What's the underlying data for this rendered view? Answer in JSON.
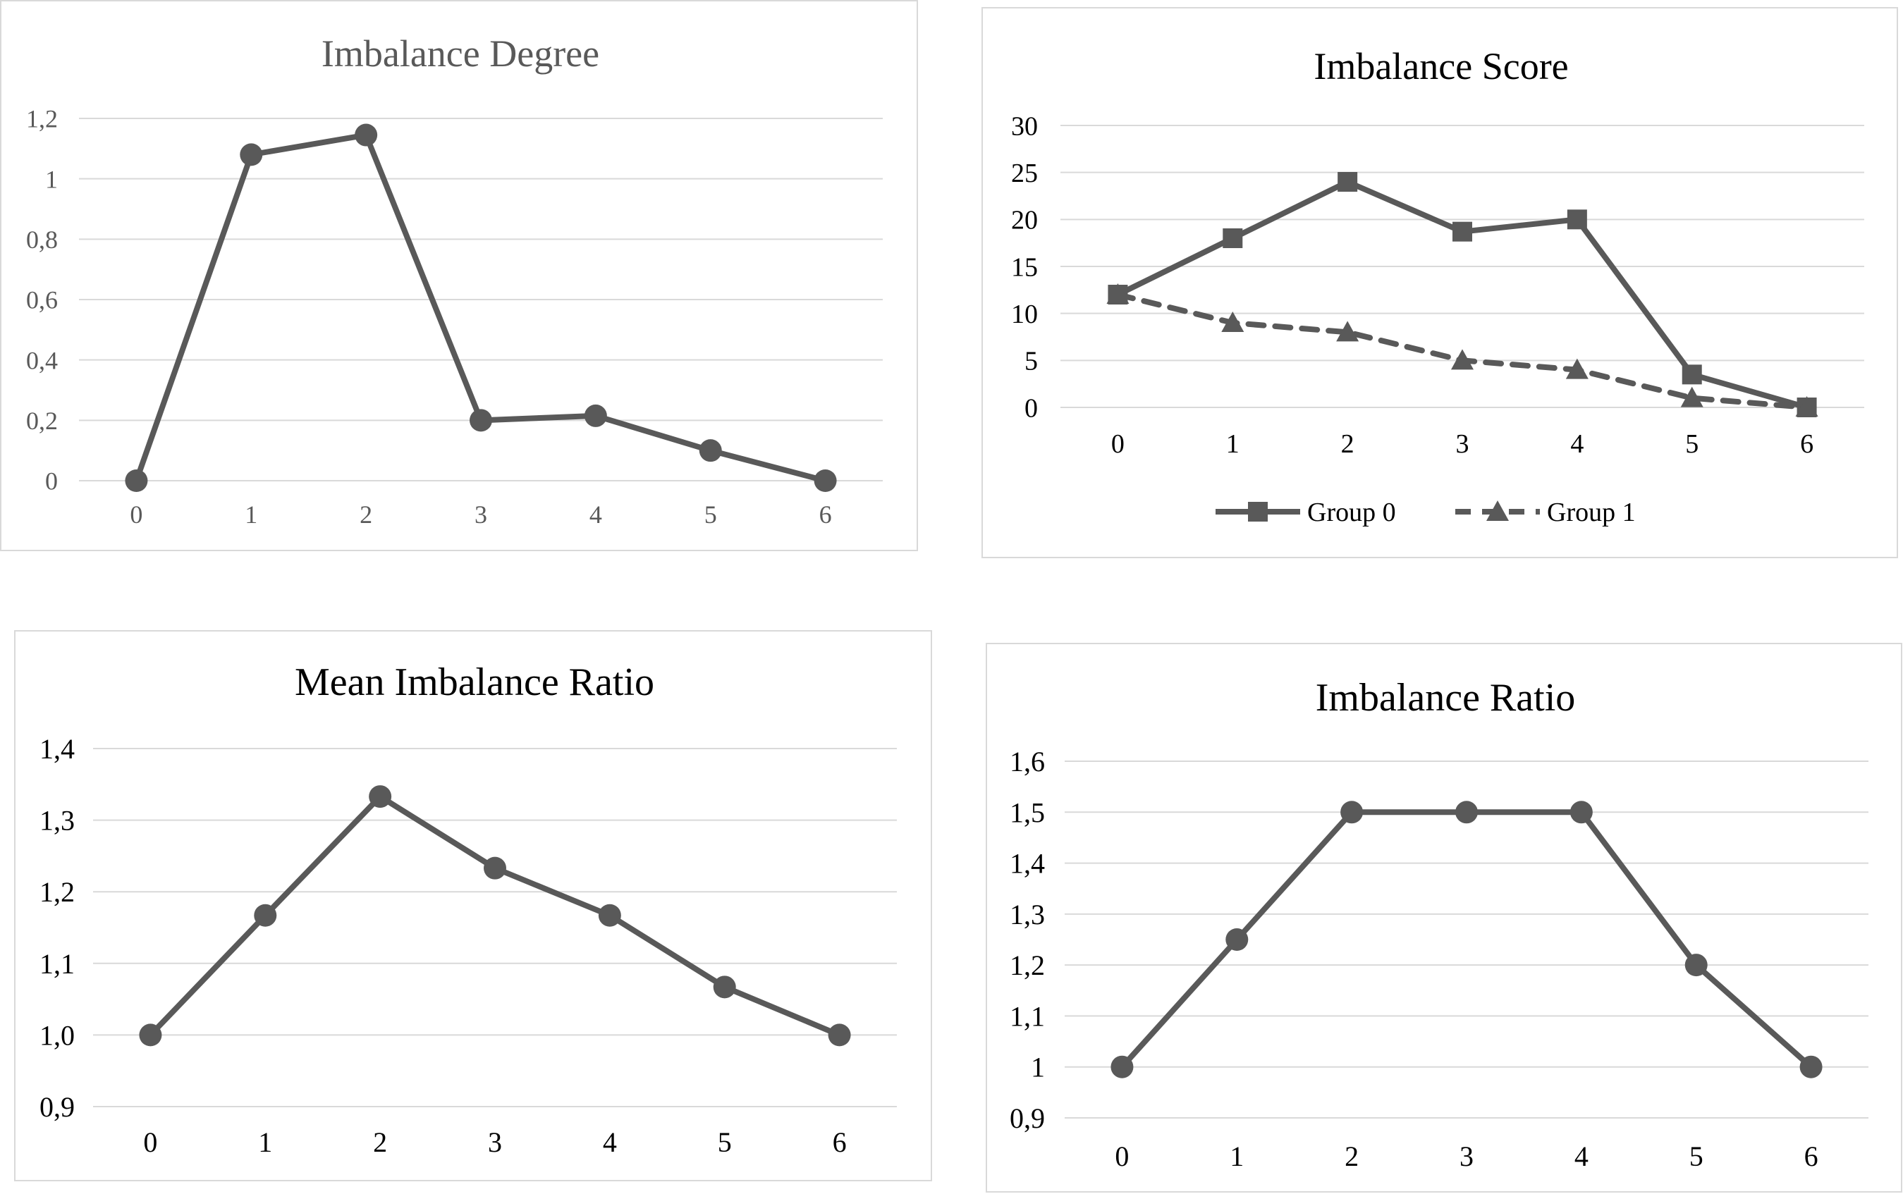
{
  "chart_data": [
    {
      "type": "line",
      "title": "Imbalance Degree",
      "xlabel": "",
      "ylabel": "",
      "categories": [
        "0",
        "1",
        "2",
        "3",
        "4",
        "5",
        "6"
      ],
      "y_ticks": [
        "0",
        "0,2",
        "0,4",
        "0,6",
        "0,8",
        "1",
        "1,2"
      ],
      "ylim": [
        0,
        1.2
      ],
      "grid": true,
      "legend": "none",
      "series": [
        {
          "values": [
            0,
            1.08,
            1.145,
            0.2,
            0.215,
            0.1,
            0
          ],
          "marker": "circle",
          "dash": false
        }
      ],
      "colors": {
        "line": "#595959",
        "title": "#595959",
        "ticks": "#595959",
        "grid": "#d9d9d9"
      }
    },
    {
      "type": "line",
      "title": "Imbalance Score",
      "xlabel": "",
      "ylabel": "",
      "categories": [
        "0",
        "1",
        "2",
        "3",
        "4",
        "5",
        "6"
      ],
      "y_ticks": [
        "0",
        "5",
        "10",
        "15",
        "20",
        "25",
        "30"
      ],
      "ylim": [
        0,
        30
      ],
      "grid": true,
      "legend": "bottom",
      "series": [
        {
          "name": "Group 0",
          "values": [
            12,
            18,
            24,
            18.7,
            20,
            3.5,
            0
          ],
          "marker": "square",
          "dash": false
        },
        {
          "name": "Group 1",
          "values": [
            12,
            9,
            8,
            5,
            4,
            1,
            0
          ],
          "marker": "triangle",
          "dash": true
        }
      ],
      "colors": {
        "line": "#595959",
        "title": "#000000",
        "ticks": "#000000",
        "grid": "#d9d9d9"
      }
    },
    {
      "type": "line",
      "title": "Mean Imbalance Ratio",
      "xlabel": "",
      "ylabel": "",
      "categories": [
        "0",
        "1",
        "2",
        "3",
        "4",
        "5",
        "6"
      ],
      "y_ticks": [
        "0,9",
        "1,0",
        "1,1",
        "1,2",
        "1,3",
        "1,4"
      ],
      "ylim": [
        0.9,
        1.4
      ],
      "grid": true,
      "legend": "none",
      "series": [
        {
          "values": [
            1.0,
            1.167,
            1.333,
            1.233,
            1.167,
            1.067,
            1.0
          ],
          "marker": "circle",
          "dash": false
        }
      ],
      "colors": {
        "line": "#595959",
        "title": "#000000",
        "ticks": "#000000",
        "grid": "#d9d9d9"
      }
    },
    {
      "type": "line",
      "title": "Imbalance Ratio",
      "xlabel": "",
      "ylabel": "",
      "categories": [
        "0",
        "1",
        "2",
        "3",
        "4",
        "5",
        "6"
      ],
      "y_ticks": [
        "0,9",
        "1",
        "1,1",
        "1,2",
        "1,3",
        "1,4",
        "1,5",
        "1,6"
      ],
      "ylim": [
        0.9,
        1.6
      ],
      "grid": true,
      "legend": "none",
      "series": [
        {
          "values": [
            1,
            1.25,
            1.5,
            1.5,
            1.5,
            1.2,
            1
          ],
          "marker": "circle",
          "dash": false
        }
      ],
      "colors": {
        "line": "#595959",
        "title": "#000000",
        "ticks": "#000000",
        "grid": "#d9d9d9"
      }
    }
  ]
}
